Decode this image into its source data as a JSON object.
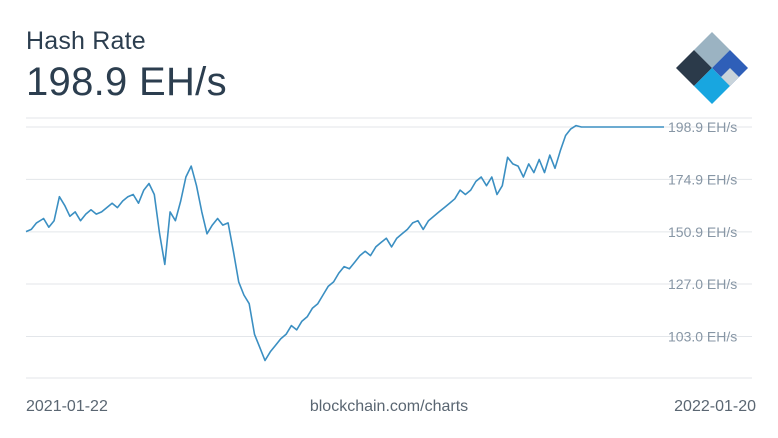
{
  "header": {
    "title": "Hash Rate",
    "value": "198.9 EH/s"
  },
  "footer": {
    "start_date": "2021-01-22",
    "source": "blockchain.com/charts",
    "end_date": "2022-01-20"
  },
  "logo": {
    "icon": "blockchain-logo-icon"
  },
  "colors": {
    "line": "#3b8fc2",
    "grid": "#e3e6ea",
    "tick_text": "#8796a5"
  },
  "chart_data": {
    "type": "line",
    "title": "Hash Rate",
    "xlim": [
      "2021-01-22",
      "2022-01-20"
    ],
    "ylim": [
      84,
      203
    ],
    "yticks": [
      103.0,
      127.0,
      150.9,
      174.9,
      198.9
    ],
    "ytick_labels": [
      "103.0 EH/s",
      "127.0 EH/s",
      "150.9 EH/s",
      "174.9 EH/s",
      "198.9 EH/s"
    ],
    "grid": true,
    "series": [
      {
        "x": [
          "2021-01-22",
          "2021-01-25",
          "2021-01-28",
          "2021-02-01",
          "2021-02-04",
          "2021-02-07",
          "2021-02-10",
          "2021-02-13",
          "2021-02-16",
          "2021-02-19",
          "2021-02-22",
          "2021-02-25",
          "2021-02-28",
          "2021-03-03",
          "2021-03-06",
          "2021-03-09",
          "2021-03-12",
          "2021-03-15",
          "2021-03-18",
          "2021-03-21",
          "2021-03-24",
          "2021-03-27",
          "2021-03-30",
          "2021-04-02",
          "2021-04-05",
          "2021-04-08",
          "2021-04-11",
          "2021-04-14",
          "2021-04-17",
          "2021-04-20",
          "2021-04-23",
          "2021-04-26",
          "2021-04-29",
          "2021-05-02",
          "2021-05-05",
          "2021-05-08",
          "2021-05-11",
          "2021-05-14",
          "2021-05-17",
          "2021-05-20",
          "2021-05-23",
          "2021-05-26",
          "2021-05-29",
          "2021-06-01",
          "2021-06-04",
          "2021-06-07",
          "2021-06-10",
          "2021-06-13",
          "2021-06-16",
          "2021-06-19",
          "2021-06-22",
          "2021-06-25",
          "2021-06-28",
          "2021-07-01",
          "2021-07-04",
          "2021-07-07",
          "2021-07-10",
          "2021-07-13",
          "2021-07-16",
          "2021-07-19",
          "2021-07-22",
          "2021-07-25",
          "2021-07-28",
          "2021-07-31",
          "2021-08-03",
          "2021-08-06",
          "2021-08-09",
          "2021-08-12",
          "2021-08-15",
          "2021-08-18",
          "2021-08-21",
          "2021-08-24",
          "2021-08-27",
          "2021-08-30",
          "2021-09-02",
          "2021-09-05",
          "2021-09-08",
          "2021-09-11",
          "2021-09-14",
          "2021-09-17",
          "2021-09-20",
          "2021-09-23",
          "2021-09-26",
          "2021-09-29",
          "2021-10-02",
          "2021-10-05",
          "2021-10-08",
          "2021-10-11",
          "2021-10-14",
          "2021-10-17",
          "2021-10-20",
          "2021-10-23",
          "2021-10-26",
          "2021-10-29",
          "2021-11-01",
          "2021-11-04",
          "2021-11-07",
          "2021-11-10",
          "2021-11-13",
          "2021-11-16",
          "2021-11-19",
          "2021-11-22",
          "2021-11-25",
          "2021-11-28",
          "2021-12-01",
          "2021-12-04",
          "2021-12-07",
          "2021-12-10",
          "2021-12-13",
          "2021-12-16",
          "2021-12-19",
          "2021-12-22",
          "2021-12-25",
          "2021-12-28",
          "2021-12-31",
          "2022-01-03",
          "2022-01-06",
          "2022-01-09",
          "2022-01-12",
          "2022-01-15",
          "2022-01-18",
          "2022-01-20"
        ],
        "values": [
          151,
          152,
          155,
          157,
          153,
          156,
          167,
          163,
          158,
          160,
          156,
          159,
          161,
          159,
          160,
          162,
          164,
          162,
          165,
          167,
          168,
          164,
          170,
          173,
          168,
          150,
          136,
          160,
          156,
          165,
          176,
          181,
          172,
          160,
          150,
          154,
          157,
          154,
          155,
          142,
          128,
          122,
          118,
          104,
          98,
          92,
          96,
          99,
          102,
          104,
          108,
          106,
          110,
          112,
          116,
          118,
          122,
          126,
          128,
          132,
          135,
          134,
          137,
          140,
          142,
          140,
          144,
          146,
          148,
          144,
          148,
          150,
          152,
          155,
          156,
          152,
          156,
          158,
          160,
          162,
          164,
          166,
          170,
          168,
          170,
          174,
          176,
          172,
          176,
          168,
          172,
          185,
          182,
          181,
          176,
          182,
          178,
          184,
          178,
          186,
          180,
          188,
          195,
          198,
          199.5,
          198.9,
          198.9,
          198.9,
          198.9,
          198.9,
          198.9,
          198.9,
          198.9,
          198.9,
          198.9,
          198.9,
          198.9,
          198.9,
          198.9,
          198.9,
          198.9,
          198.9
        ]
      }
    ]
  }
}
